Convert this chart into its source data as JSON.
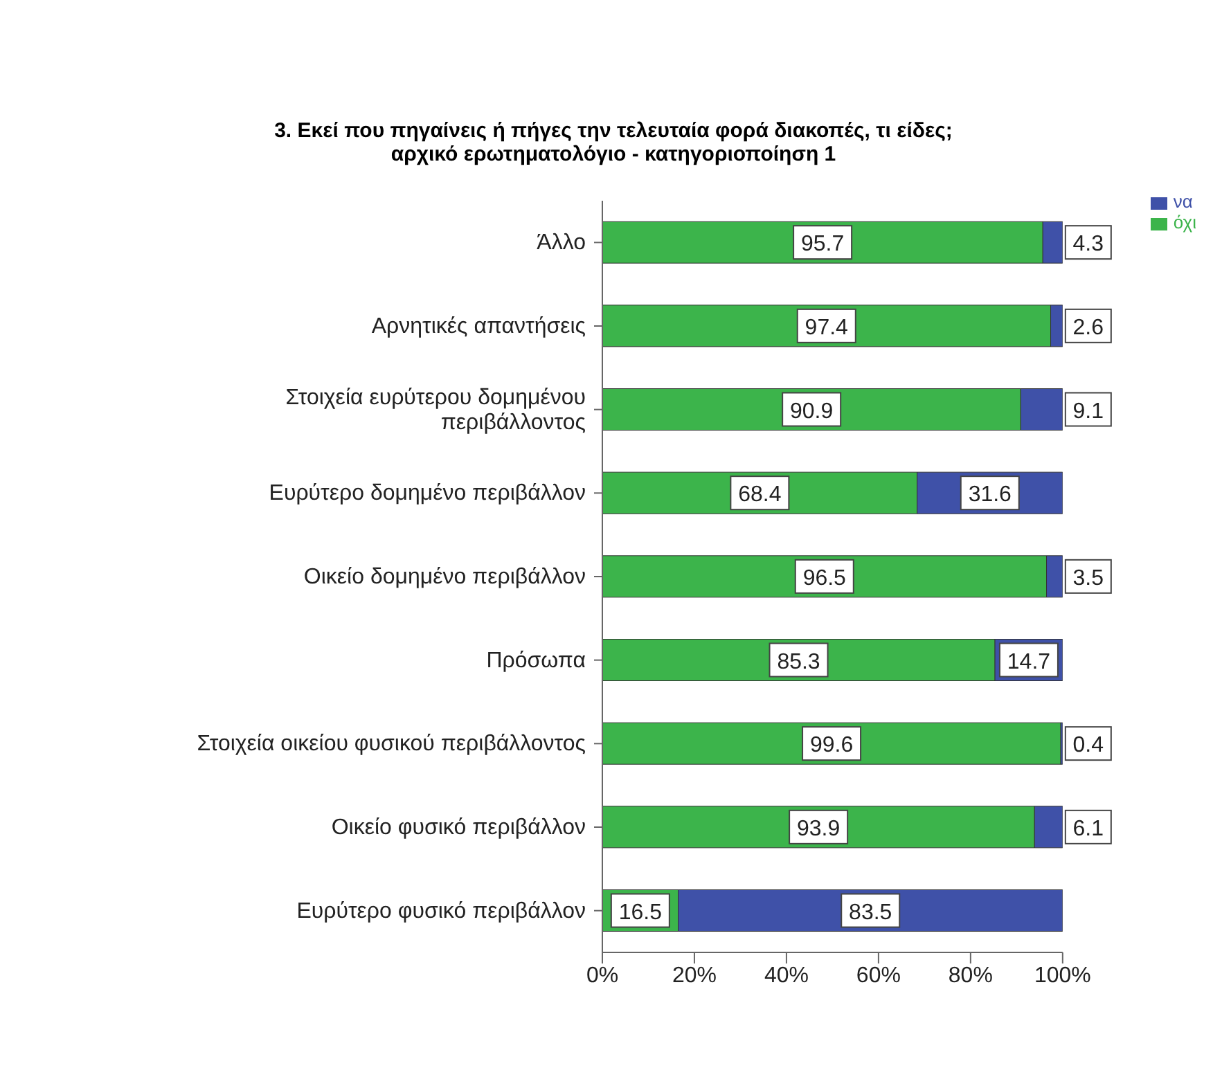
{
  "chart_data": {
    "type": "bar",
    "orientation": "horizontal",
    "stacked": true,
    "title": "3. Εκεί που πηγαίνεις ή πήγες την τελευταία φορά διακοπές, τι είδες;\nαρχικό ερωτηματολόγιο - κατηγοριοποίηση 1",
    "categories": [
      "Άλλο",
      "Αρνητικές απαντήσεις",
      "Στοιχεία ευρύτερου δομημένου περιβάλλοντος",
      "Ευρύτερο δομημένο περιβάλλον",
      "Οικείο δομημένο περιβάλλον",
      "Πρόσωπα",
      "Στοιχεία οικείου φυσικού περιβάλλοντος",
      "Οικείο φυσικό περιβάλλον",
      "Ευρύτερο φυσικό περιβάλλον"
    ],
    "series": [
      {
        "name": "όχι",
        "color": "#3cb44b",
        "values": [
          95.7,
          97.4,
          90.9,
          68.4,
          96.5,
          85.3,
          99.6,
          93.9,
          16.5
        ]
      },
      {
        "name": "να",
        "color": "#3f51a8",
        "values": [
          4.3,
          2.6,
          9.1,
          31.6,
          3.5,
          14.7,
          0.4,
          6.1,
          83.5
        ]
      }
    ],
    "xlim": [
      0,
      100
    ],
    "xticks": [
      {
        "value": 0,
        "label": "0%"
      },
      {
        "value": 20,
        "label": "20%"
      },
      {
        "value": 40,
        "label": "40%"
      },
      {
        "value": 60,
        "label": "60%"
      },
      {
        "value": 80,
        "label": "80%"
      },
      {
        "value": 100,
        "label": "100%"
      }
    ],
    "data_labels": true,
    "legend": "top right",
    "grid": false
  }
}
